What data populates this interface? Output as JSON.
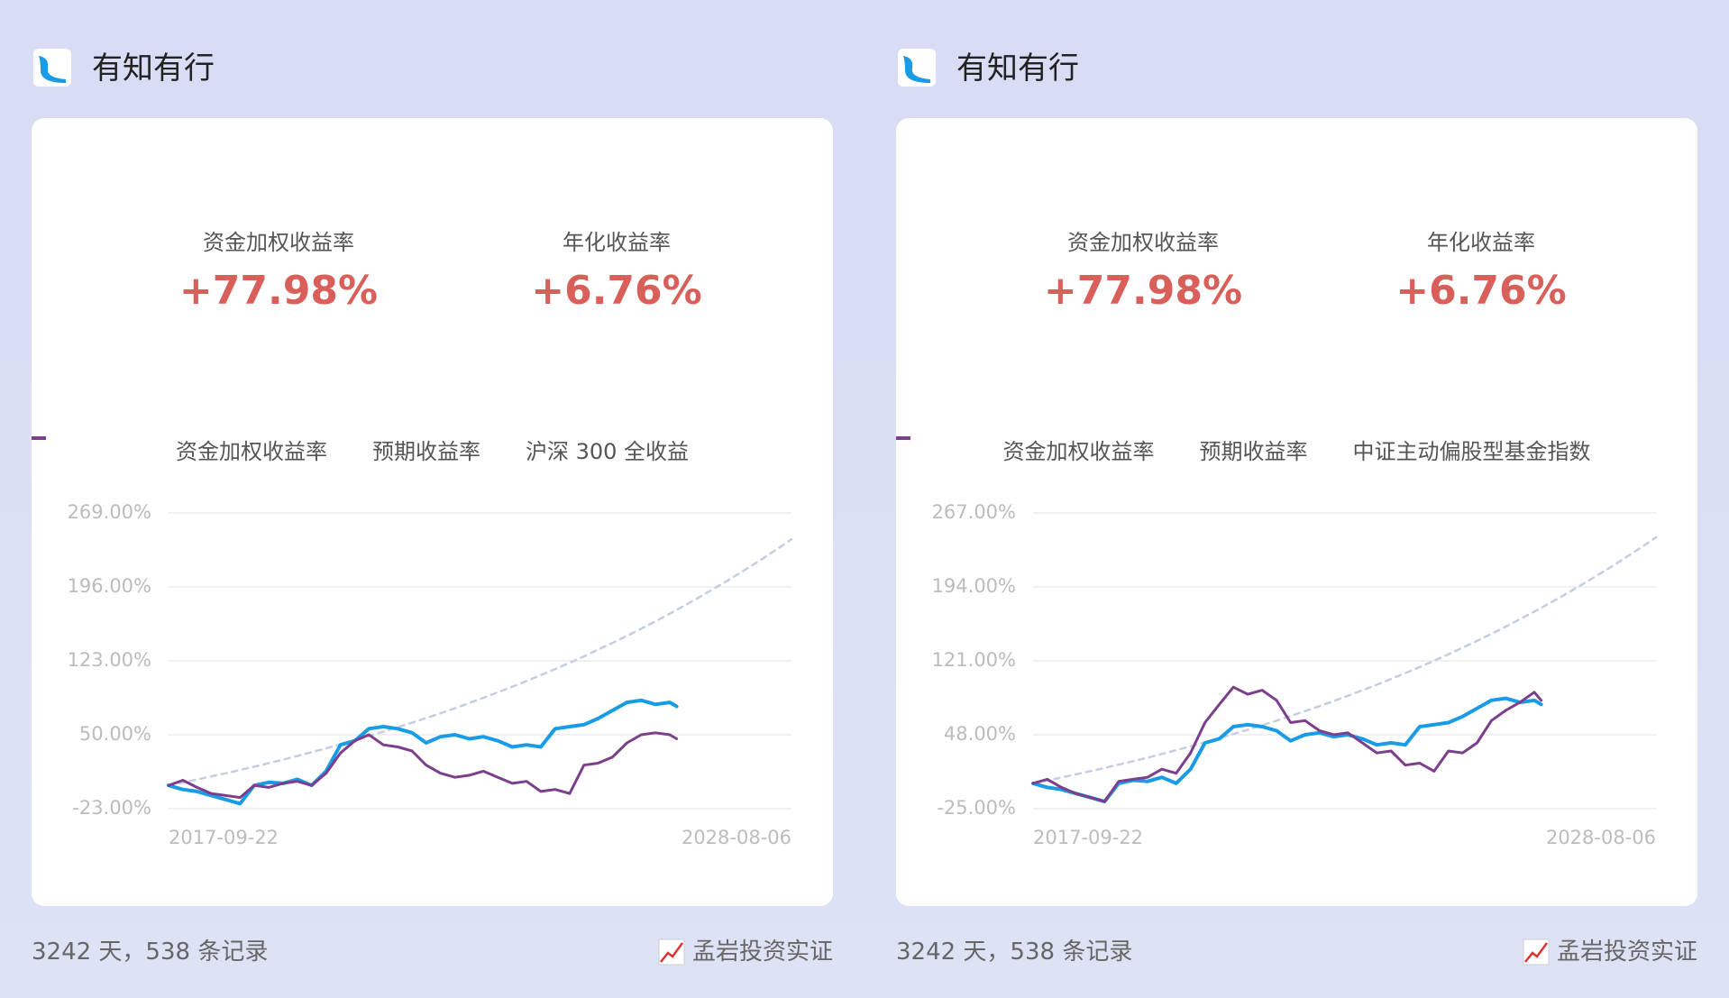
{
  "panels": [
    {
      "brand": "有知有行",
      "stats": [
        {
          "label": "资金加权收益率",
          "value": "+77.98%"
        },
        {
          "label": "年化收益率",
          "value": "+6.76%"
        }
      ],
      "footer_left": "3242 天，538 条记录",
      "footer_right": "孟岩投资实证"
    },
    {
      "brand": "有知有行",
      "stats": [
        {
          "label": "资金加权收益率",
          "value": "+77.98%"
        },
        {
          "label": "年化收益率",
          "value": "+6.76%"
        }
      ],
      "footer_left": "3242 天，538 条记录",
      "footer_right": "孟岩投资实证"
    }
  ],
  "chart_data": [
    {
      "type": "line",
      "x": [
        "2017-09-22",
        "2017-12-22",
        "2018-03-22",
        "2018-06-22",
        "2018-09-22",
        "2018-12-22",
        "2019-03-22",
        "2019-06-22",
        "2019-09-22",
        "2019-12-22",
        "2020-03-22",
        "2020-06-22",
        "2020-09-22",
        "2020-12-22",
        "2021-03-22",
        "2021-06-22",
        "2021-09-22",
        "2021-12-22",
        "2022-03-22",
        "2022-06-22",
        "2022-09-22",
        "2022-12-22",
        "2023-03-22",
        "2023-06-22",
        "2023-09-22",
        "2023-12-22",
        "2024-03-22",
        "2024-06-22",
        "2024-09-22",
        "2024-12-22",
        "2025-03-22",
        "2025-06-22",
        "2025-09-22",
        "2025-12-22",
        "2026-03-22",
        "2026-06-22",
        "2026-08-05",
        "2026-12-22",
        "2027-03-22",
        "2027-06-22",
        "2027-09-22",
        "2027-12-22",
        "2028-03-22",
        "2028-06-22",
        "2028-08-06"
      ],
      "xlim": [
        "2017-09-22",
        "2028-08-06"
      ],
      "xticks": [
        "2017-09-22",
        "2028-08-06"
      ],
      "ylim": [
        -23,
        269
      ],
      "yticks": [
        {
          "value": -23,
          "label": "-23.00%"
        },
        {
          "value": 50,
          "label": "50.00%"
        },
        {
          "value": 123,
          "label": "123.00%"
        },
        {
          "value": 196,
          "label": "196.00%"
        },
        {
          "value": 269,
          "label": "269.00%"
        }
      ],
      "grid": true,
      "series": [
        {
          "name": "资金加权收益率",
          "color": "#1a9be6",
          "values": [
            0,
            -4,
            -6,
            -10,
            -14,
            -18,
            0,
            3,
            2,
            6,
            0,
            14,
            40,
            44,
            56,
            58,
            56,
            52,
            42,
            48,
            50,
            46,
            48,
            44,
            38,
            40,
            38,
            56,
            58,
            60,
            66,
            74,
            82,
            84,
            80,
            82,
            78,
            null,
            null,
            null,
            null,
            null,
            null,
            null,
            null
          ]
        },
        {
          "name": "预期收益率",
          "color": "#c5cde0",
          "dashed": true,
          "values": [
            0,
            2.9,
            5.8,
            8.9,
            12,
            15.2,
            18.5,
            21.9,
            25.4,
            29.0,
            32.8,
            36.6,
            40.5,
            44.5,
            48.7,
            53.0,
            57.4,
            61.9,
            66.5,
            71.3,
            76.2,
            81.3,
            86.5,
            91.9,
            97.4,
            103.1,
            108.9,
            114.9,
            121.1,
            127.4,
            134.0,
            140.7,
            147.6,
            154.7,
            162.0,
            169.6,
            173.3,
            185.3,
            193.5,
            201.9,
            210.6,
            219.5,
            228.7,
            238.2,
            243.0
          ]
        },
        {
          "name": "沪深 300 全收益",
          "color": "#7b3f8c",
          "values": [
            0,
            5,
            -2,
            -8,
            -10,
            -12,
            0,
            -2,
            2,
            4,
            0,
            12,
            32,
            44,
            50,
            40,
            38,
            34,
            20,
            12,
            8,
            10,
            14,
            8,
            2,
            4,
            -6,
            -4,
            -8,
            20,
            22,
            28,
            42,
            50,
            52,
            50,
            46,
            null,
            null,
            null,
            null,
            null,
            null,
            null,
            null
          ]
        }
      ]
    },
    {
      "type": "line",
      "x": [
        "2017-09-22",
        "2017-12-22",
        "2018-03-22",
        "2018-06-22",
        "2018-09-22",
        "2018-12-22",
        "2019-03-22",
        "2019-06-22",
        "2019-09-22",
        "2019-12-22",
        "2020-03-22",
        "2020-06-22",
        "2020-09-22",
        "2020-12-22",
        "2021-03-22",
        "2021-06-22",
        "2021-09-22",
        "2021-12-22",
        "2022-03-22",
        "2022-06-22",
        "2022-09-22",
        "2022-12-22",
        "2023-03-22",
        "2023-06-22",
        "2023-09-22",
        "2023-12-22",
        "2024-03-22",
        "2024-06-22",
        "2024-09-22",
        "2024-12-22",
        "2025-03-22",
        "2025-06-22",
        "2025-09-22",
        "2025-12-22",
        "2026-03-22",
        "2026-06-22",
        "2026-08-05",
        "2026-12-22",
        "2027-03-22",
        "2027-06-22",
        "2027-09-22",
        "2027-12-22",
        "2028-03-22",
        "2028-06-22",
        "2028-08-06"
      ],
      "xlim": [
        "2017-09-22",
        "2028-08-06"
      ],
      "xticks": [
        "2017-09-22",
        "2028-08-06"
      ],
      "ylim": [
        -25,
        267
      ],
      "yticks": [
        {
          "value": -25,
          "label": "-25.00%"
        },
        {
          "value": 48,
          "label": "48.00%"
        },
        {
          "value": 121,
          "label": "121.00%"
        },
        {
          "value": 194,
          "label": "194.00%"
        },
        {
          "value": 267,
          "label": "267.00%"
        }
      ],
      "grid": true,
      "series": [
        {
          "name": "资金加权收益率",
          "color": "#1a9be6",
          "values": [
            0,
            -4,
            -6,
            -10,
            -14,
            -18,
            0,
            3,
            2,
            6,
            0,
            14,
            40,
            44,
            56,
            58,
            56,
            52,
            42,
            48,
            50,
            46,
            48,
            44,
            38,
            40,
            38,
            56,
            58,
            60,
            66,
            74,
            82,
            84,
            80,
            82,
            78,
            null,
            null,
            null,
            null,
            null,
            null,
            null,
            null
          ]
        },
        {
          "name": "预期收益率",
          "color": "#c5cde0",
          "dashed": true,
          "values": [
            0,
            2.9,
            5.8,
            8.9,
            12,
            15.2,
            18.5,
            21.9,
            25.4,
            29.0,
            32.8,
            36.6,
            40.5,
            44.5,
            48.7,
            53.0,
            57.4,
            61.9,
            66.5,
            71.3,
            76.2,
            81.3,
            86.5,
            91.9,
            97.4,
            103.1,
            108.9,
            114.9,
            121.1,
            127.4,
            134.0,
            140.7,
            147.6,
            154.7,
            162.0,
            169.6,
            173.3,
            185.3,
            193.5,
            201.9,
            210.6,
            219.5,
            228.7,
            238.2,
            243.0
          ]
        },
        {
          "name": "中证主动偏股型基金指数",
          "color": "#7b3f8c",
          "values": [
            0,
            4,
            -4,
            -10,
            -14,
            -18,
            2,
            4,
            6,
            14,
            10,
            30,
            60,
            78,
            95,
            88,
            92,
            82,
            60,
            62,
            52,
            48,
            50,
            40,
            30,
            32,
            18,
            20,
            12,
            32,
            30,
            40,
            62,
            72,
            80,
            90,
            82,
            null,
            null,
            null,
            null,
            null,
            null,
            null,
            null
          ]
        }
      ]
    }
  ]
}
